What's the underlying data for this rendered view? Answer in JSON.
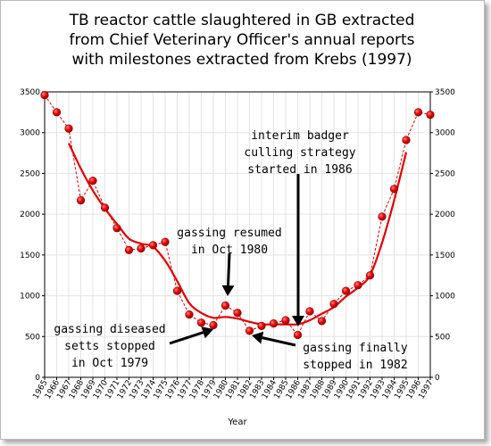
{
  "chart_data": {
    "type": "line",
    "title": [
      "TB reactor cattle slaughtered in GB extracted",
      "from Chief Veterinary Officer's annual reports",
      "with milestones extracted from Krebs (1997)"
    ],
    "xlabel": "Year",
    "ylabel": "",
    "ylim": [
      0,
      3500
    ],
    "yticks": [
      0,
      500,
      1000,
      1500,
      2000,
      2500,
      3000,
      3500
    ],
    "grid": true,
    "categories": [
      "1965",
      "1966",
      "1967",
      "1968",
      "1969",
      "1970",
      "1971",
      "1972",
      "1973",
      "1974",
      "1975",
      "1976",
      "1977",
      "1978",
      "1979",
      "1980",
      "1981",
      "1982",
      "1983",
      "1984",
      "1985",
      "1986",
      "1987",
      "1988",
      "1989",
      "1990",
      "1991",
      "1992",
      "1993",
      "1994",
      "1995",
      "1996",
      "1997"
    ],
    "series": [
      {
        "style": "dashed-markers",
        "color": "#e00000",
        "values": [
          3460,
          3250,
          3050,
          2170,
          2410,
          2080,
          1830,
          1560,
          1580,
          1620,
          1660,
          1060,
          770,
          670,
          640,
          880,
          790,
          570,
          630,
          660,
          700,
          520,
          810,
          690,
          900,
          1060,
          1130,
          1250,
          1970,
          2310,
          2910,
          3250,
          3220
        ]
      },
      {
        "style": "smoothed",
        "color": "#e00000",
        "x": [
          "1967",
          "1968",
          "1969",
          "1970",
          "1971",
          "1972",
          "1973",
          "1974",
          "1975",
          "1976",
          "1977",
          "1978",
          "1979",
          "1980",
          "1981",
          "1982",
          "1983",
          "1984",
          "1985",
          "1986",
          "1987",
          "1988",
          "1989",
          "1990",
          "1991",
          "1992",
          "1993",
          "1994",
          "1995"
        ],
        "values": [
          2870,
          2560,
          2290,
          2070,
          1880,
          1700,
          1640,
          1600,
          1430,
          1180,
          910,
          790,
          730,
          740,
          720,
          680,
          650,
          650,
          650,
          650,
          700,
          780,
          860,
          990,
          1100,
          1250,
          1650,
          2170,
          2760
        ]
      }
    ],
    "annotations": [
      {
        "lines": [
          "interim badger",
          "culling strategy",
          "started in 1986"
        ]
      },
      {
        "lines": [
          "gassing resumed",
          "in Oct 1980"
        ]
      },
      {
        "lines": [
          "gassing diseased",
          "setts stopped",
          "in Oct 1979"
        ]
      },
      {
        "lines": [
          "gassing finally",
          "stopped in 1982"
        ]
      }
    ]
  }
}
